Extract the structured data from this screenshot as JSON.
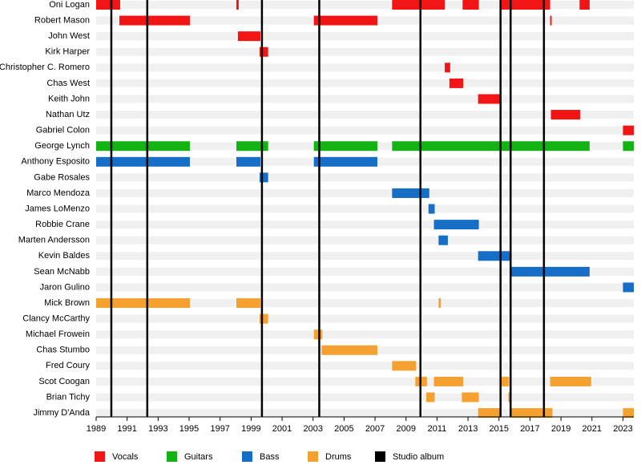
{
  "chart_data": {
    "type": "timeline",
    "xlim": [
      1989,
      2023.7
    ],
    "xticks": [
      1989,
      1991,
      1993,
      1995,
      1997,
      1999,
      2001,
      2003,
      2005,
      2007,
      2009,
      2011,
      2013,
      2015,
      2017,
      2019,
      2021,
      2023
    ],
    "series": [
      {
        "name": "Vocals",
        "color": "#f21515",
        "members": [
          {
            "name": "Oni Logan",
            "spans": [
              [
                1989,
                1990.55
              ],
              [
                1998.05,
                1998.2
              ],
              [
                2008.1,
                2011.5
              ],
              [
                2012.65,
                2013.7
              ],
              [
                2015.05,
                2018.3
              ],
              [
                2020.2,
                2020.85
              ]
            ]
          },
          {
            "name": "Robert Mason",
            "spans": [
              [
                1990.5,
                1995.05
              ],
              [
                2003.05,
                2007.15
              ],
              [
                2018.3,
                2018.4
              ]
            ]
          },
          {
            "name": "John West",
            "spans": [
              [
                1998.15,
                1999.6
              ]
            ]
          },
          {
            "name": "Kirk Harper",
            "spans": [
              [
                1999.55,
                2000.1
              ]
            ]
          },
          {
            "name": "Christopher C. Romero",
            "spans": [
              [
                2011.5,
                2011.85
              ]
            ]
          },
          {
            "name": "Chas West",
            "spans": [
              [
                2011.8,
                2012.7
              ]
            ]
          },
          {
            "name": "Keith John",
            "spans": [
              [
                2013.65,
                2015.1
              ]
            ]
          },
          {
            "name": "Nathan Utz",
            "spans": [
              [
                2018.35,
                2020.25
              ]
            ]
          },
          {
            "name": "Gabriel Colon",
            "spans": [
              [
                2023,
                2023.7
              ]
            ]
          }
        ]
      },
      {
        "name": "Guitars",
        "color": "#12b312",
        "members": [
          {
            "name": "George Lynch",
            "spans": [
              [
                1989,
                1995.05
              ],
              [
                1998.05,
                2000.1
              ],
              [
                2003.05,
                2007.15
              ],
              [
                2008.1,
                2020.85
              ],
              [
                2023,
                2023.7
              ]
            ]
          }
        ]
      },
      {
        "name": "Bass",
        "color": "#176ec6",
        "members": [
          {
            "name": "Anthony Esposito",
            "spans": [
              [
                1989,
                1995.05
              ],
              [
                1998.05,
                1999.6
              ],
              [
                2003.05,
                2007.15
              ]
            ]
          },
          {
            "name": "Gabe Rosales",
            "spans": [
              [
                1999.55,
                2000.1
              ]
            ]
          },
          {
            "name": "Marco Mendoza",
            "spans": [
              [
                2008.1,
                2010.5
              ]
            ]
          },
          {
            "name": "James LoMenzo",
            "spans": [
              [
                2010.45,
                2010.85
              ]
            ]
          },
          {
            "name": "Robbie Crane",
            "spans": [
              [
                2010.8,
                2013.7
              ]
            ]
          },
          {
            "name": "Marten Andersson",
            "spans": [
              [
                2011.1,
                2011.7
              ]
            ]
          },
          {
            "name": "Kevin Baldes",
            "spans": [
              [
                2013.65,
                2015.75
              ]
            ]
          },
          {
            "name": "Sean McNabb",
            "spans": [
              [
                2015.75,
                2020.85
              ]
            ]
          },
          {
            "name": "Jaron Gulino",
            "spans": [
              [
                2023,
                2023.7
              ]
            ]
          }
        ]
      },
      {
        "name": "Drums",
        "color": "#f5a132",
        "members": [
          {
            "name": "Mick Brown",
            "spans": [
              [
                1989,
                1995.05
              ],
              [
                1998.05,
                1999.6
              ],
              [
                2011.1,
                2011.25
              ]
            ]
          },
          {
            "name": "Clancy McCarthy",
            "spans": [
              [
                1999.55,
                2000.1
              ]
            ]
          },
          {
            "name": "Michael Frowein",
            "spans": [
              [
                2003.05,
                2003.6
              ]
            ]
          },
          {
            "name": "Chas Stumbo",
            "spans": [
              [
                2003.55,
                2007.15
              ]
            ]
          },
          {
            "name": "Fred Coury",
            "spans": [
              [
                2008.1,
                2009.65
              ]
            ]
          },
          {
            "name": "Scot Coogan",
            "spans": [
              [
                2009.6,
                2010.35
              ],
              [
                2010.8,
                2012.7
              ],
              [
                2015.05,
                2015.65
              ],
              [
                2018.3,
                2020.95
              ]
            ]
          },
          {
            "name": "Brian Tichy",
            "spans": [
              [
                2010.3,
                2010.85
              ],
              [
                2012.6,
                2013.7
              ],
              [
                2015.6,
                2015.75
              ]
            ]
          },
          {
            "name": "Jimmy D'Anda",
            "spans": [
              [
                2013.65,
                2015.1
              ],
              [
                2015.75,
                2018.45
              ],
              [
                2023,
                2023.7
              ]
            ]
          }
        ]
      }
    ],
    "albums": {
      "name": "Studio album",
      "color": "#000000",
      "values": [
        1989.98,
        1992.3,
        1999.7,
        2003.4,
        2009.93,
        2015.1,
        2015.75,
        2017.9
      ]
    }
  }
}
